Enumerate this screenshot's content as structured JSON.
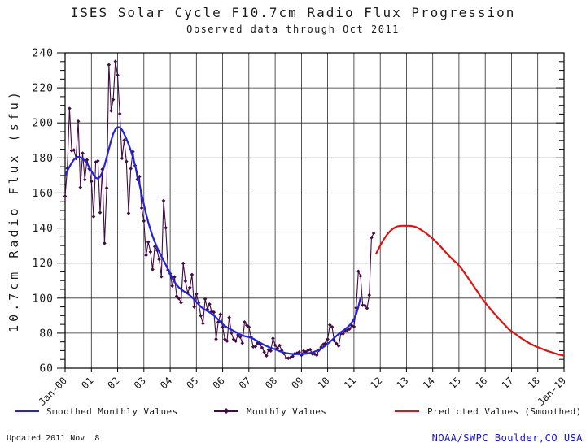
{
  "title": "ISES Solar Cycle F10.7cm Radio Flux Progression",
  "subtitle": "Observed data through Oct 2011",
  "footer": {
    "updated": "Updated 2011 Nov  8",
    "source": "NOAA/SWPC Boulder,CO USA",
    "source_color": "#1414cc"
  },
  "legend": [
    {
      "label": "Smoothed Monthly Values",
      "color": "#2323dd",
      "style": "line"
    },
    {
      "label": "Monthly Values",
      "color": "#430b43",
      "style": "line-dot"
    },
    {
      "label": "Predicted Values (Smoothed)",
      "color": "#dd1414",
      "style": "line"
    }
  ],
  "chart_data": {
    "type": "line",
    "title": "ISES Solar Cycle F10.7cm Radio Flux Progression",
    "subtitle": "Observed data through Oct 2011",
    "xlabel": "",
    "ylabel": "10.7cm Radio Flux (sfu)",
    "ylim": [
      60,
      240
    ],
    "y_ticks": [
      60,
      80,
      100,
      120,
      140,
      160,
      180,
      200,
      220,
      240
    ],
    "y_minor_tick_step": 5,
    "x_range": [
      "Jan-2000",
      "Jan-2019"
    ],
    "months_total": 228,
    "grid": true,
    "legend_position": "bottom",
    "x_ticks": [
      {
        "label": "Jan-00",
        "month": 0
      },
      {
        "label": "01",
        "month": 12
      },
      {
        "label": "02",
        "month": 24
      },
      {
        "label": "03",
        "month": 36
      },
      {
        "label": "04",
        "month": 48
      },
      {
        "label": "05",
        "month": 60
      },
      {
        "label": "06",
        "month": 72
      },
      {
        "label": "07",
        "month": 84
      },
      {
        "label": "08",
        "month": 96
      },
      {
        "label": "09",
        "month": 108
      },
      {
        "label": "10",
        "month": 120
      },
      {
        "label": "11",
        "month": 132
      },
      {
        "label": "12",
        "month": 144
      },
      {
        "label": "13",
        "month": 156
      },
      {
        "label": "14",
        "month": 168
      },
      {
        "label": "15",
        "month": 180
      },
      {
        "label": "16",
        "month": 192
      },
      {
        "label": "17",
        "month": 204
      },
      {
        "label": "18",
        "month": 216
      },
      {
        "label": "Jan-19",
        "month": 228
      }
    ],
    "series": [
      {
        "name": "Monthly Values",
        "color": "#430b43",
        "width": 1.1,
        "marker": "diamond",
        "start_month": "2000-01",
        "start_index": 0,
        "values": [
          158.1,
          174.1,
          208.2,
          184.1,
          184.5,
          179.8,
          200.9,
          163.2,
          182.7,
          167.6,
          178.9,
          173.8,
          166.6,
          146.5,
          177.6,
          178.3,
          148.8,
          173.5,
          131.3,
          162.9,
          233.2,
          206.9,
          213.3,
          235.1,
          227.3,
          205.2,
          179.8,
          190.1,
          178.0,
          148.4,
          173.9,
          183.6,
          175.6,
          167.7,
          169.4,
          151.4,
          144.0,
          124.5,
          132.0,
          126.4,
          116.4,
          129.4,
          127.4,
          122.1,
          112.3,
          155.6,
          140.1,
          116.1,
          114.0,
          107.0,
          112.1,
          101.1,
          99.8,
          97.4,
          119.8,
          109.7,
          103.1,
          106.0,
          113.4,
          95.0,
          102.3,
          97.2,
          89.9,
          85.5,
          99.5,
          93.7,
          96.5,
          92.4,
          91.9,
          76.6,
          86.3,
          90.8,
          83.4,
          76.5,
          75.5,
          88.9,
          80.1,
          76.5,
          75.5,
          79.0,
          77.8,
          74.3,
          86.3,
          84.5,
          83.5,
          77.7,
          72.2,
          72.4,
          74.4,
          73.7,
          71.6,
          69.2,
          67.1,
          70.5,
          69.9,
          77.0,
          73.1,
          71.3,
          73.0,
          70.1,
          68.4,
          65.8,
          65.7,
          66.0,
          66.7,
          68.3,
          68.6,
          69.2,
          67.4,
          69.9,
          69.2,
          70.1,
          70.6,
          68.2,
          68.1,
          67.4,
          70.3,
          72.0,
          73.6,
          74.2,
          76.5,
          84.7,
          83.5,
          75.7,
          74.0,
          72.7,
          79.7,
          79.6,
          81.4,
          81.6,
          82.4,
          84.3,
          83.7,
          94.4,
          115.3,
          112.6,
          95.9,
          95.8,
          94.2,
          101.7,
          134.5,
          137.0
        ]
      },
      {
        "name": "Smoothed Monthly Values",
        "color": "#2323dd",
        "width": 2.2,
        "marker": "none",
        "start_month": "2000-01",
        "start_index": 0,
        "values": [
          170.0,
          172.6,
          175.0,
          177.2,
          179.0,
          180.2,
          180.6,
          180.3,
          179.6,
          178.4,
          176.8,
          174.8,
          172.6,
          170.4,
          168.7,
          168.2,
          169.3,
          171.9,
          175.7,
          180.3,
          185.2,
          189.9,
          193.8,
          196.4,
          197.6,
          197.4,
          196.0,
          193.7,
          190.9,
          187.8,
          184.3,
          180.3,
          175.7,
          170.5,
          164.9,
          159.1,
          153.4,
          148.1,
          143.3,
          139.1,
          135.4,
          132.1,
          129.1,
          126.4,
          123.9,
          121.5,
          119.0,
          116.4,
          113.8,
          111.4,
          109.3,
          107.5,
          106.1,
          105.0,
          104.1,
          103.3,
          102.5,
          101.6,
          100.5,
          99.2,
          97.8,
          96.4,
          95.1,
          94.1,
          93.3,
          92.6,
          91.9,
          91.1,
          90.1,
          88.9,
          87.6,
          86.3,
          85.1,
          84.1,
          83.3,
          82.6,
          82.0,
          81.3,
          80.6,
          79.9,
          79.2,
          78.7,
          78.3,
          78.0,
          77.7,
          77.3,
          76.8,
          76.1,
          75.4,
          74.6,
          73.9,
          73.2,
          72.6,
          72.1,
          71.6,
          71.2,
          70.7,
          70.2,
          69.7,
          69.3,
          68.9,
          68.6,
          68.4,
          68.2,
          68.1,
          68.0,
          68.0,
          68.0,
          68.0,
          68.1,
          68.2,
          68.4,
          68.7,
          69.0,
          69.4,
          69.9,
          70.5,
          71.2,
          72.0,
          72.9,
          73.9,
          75.0,
          76.1,
          77.3,
          78.4,
          79.5,
          80.5,
          81.4,
          82.3,
          83.3,
          84.5,
          86.0,
          88.0,
          90.8,
          95.0,
          100.3
        ]
      },
      {
        "name": "Predicted Values (Smoothed)",
        "color": "#dd1414",
        "width": 2.2,
        "marker": "none",
        "start_month": "2011-11",
        "start_index": 142,
        "values": [
          125.0,
          127.6,
          130.0,
          132.2,
          134.2,
          136.0,
          137.5,
          138.8,
          139.8,
          140.5,
          141.0,
          141.2,
          141.3,
          141.3,
          141.3,
          141.3,
          141.2,
          141.0,
          140.7,
          140.2,
          139.5,
          138.7,
          137.9,
          137.0,
          136.0,
          135.0,
          133.9,
          132.7,
          131.5,
          130.2,
          128.9,
          127.5,
          126.1,
          124.7,
          123.4,
          122.2,
          121.0,
          120.0,
          118.6,
          117.1,
          115.4,
          113.6,
          111.8,
          110.0,
          108.2,
          106.3,
          104.5,
          102.6,
          100.8,
          99.0,
          97.4,
          95.8,
          94.3,
          92.8,
          91.4,
          90.0,
          88.6,
          87.2,
          85.9,
          84.6,
          83.3,
          82.0,
          81.1,
          80.2,
          79.3,
          78.4,
          77.5,
          76.7,
          75.9,
          75.1,
          74.4,
          73.7,
          73.1,
          72.5,
          72.0,
          71.5,
          71.0,
          70.5,
          70.0,
          69.6,
          69.2,
          68.8,
          68.4,
          68.0,
          67.7,
          67.4,
          67.1
        ]
      }
    ]
  }
}
